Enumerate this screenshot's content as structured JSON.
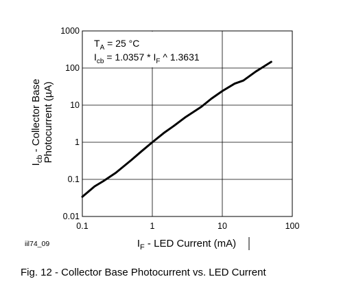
{
  "chart_data": {
    "type": "line",
    "x_scale": "log",
    "y_scale": "log",
    "xlim": [
      0.1,
      100
    ],
    "ylim": [
      0.01,
      1000
    ],
    "x_ticks": [
      "0.1",
      "1",
      "10",
      "100"
    ],
    "y_ticks": [
      "0.01",
      "0.1",
      "1",
      "10",
      "100",
      "1000"
    ],
    "grid": true,
    "xlabel": {
      "main": "I",
      "sub": "F",
      "rest": " - LED Current (mA)"
    },
    "ylabel_line1": {
      "main": "I",
      "sub": "cb",
      "rest": " - Collector Base"
    },
    "ylabel_line2": "Photocurrent (µA)",
    "annotation_line1": {
      "main": "T",
      "sub": "A",
      "rest": " = 25 °C"
    },
    "annotation_line2": {
      "a": "I",
      "a_sub": "cb",
      "b": " = 1.0357 * I",
      "b_sub": "F",
      "c": " ^ 1.3631"
    },
    "figure_id": "iil74_09",
    "caption": "Fig. 12 - Collector Base Photocurrent vs. LED Current",
    "series": [
      {
        "x": [
          0.1,
          0.15,
          0.2,
          0.3,
          0.5,
          0.7,
          1.0,
          1.5,
          2,
          3,
          5,
          7,
          10,
          15,
          20,
          30,
          50
        ],
        "y": [
          0.034,
          0.065,
          0.09,
          0.15,
          0.33,
          0.57,
          1.0,
          1.85,
          2.7,
          4.8,
          9.0,
          15.0,
          24.0,
          38.0,
          46.0,
          80.0,
          147.0
        ],
        "color": "#000000"
      }
    ]
  }
}
